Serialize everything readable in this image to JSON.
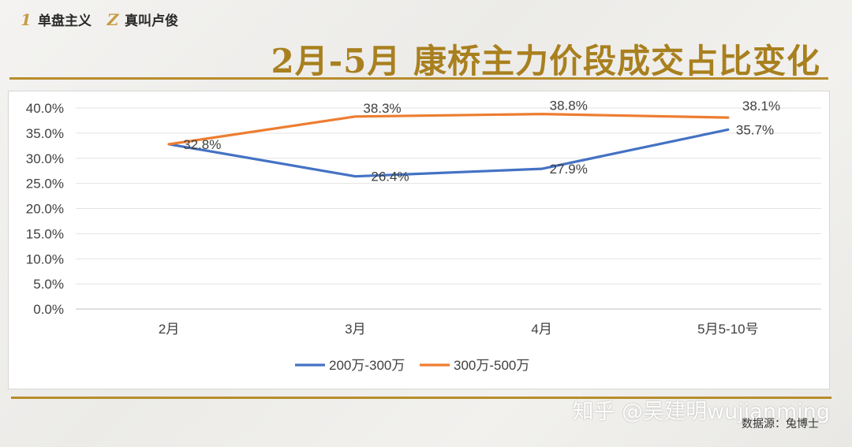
{
  "brand": {
    "item1": {
      "icon": "1",
      "label": "单盘主义"
    },
    "item2": {
      "icon": "Z",
      "label": "真叫卢俊"
    }
  },
  "title": "2月-5月 康桥主力价段成交占比变化",
  "watermark": "知乎 @吴建明wujianming",
  "source": "数据源：兔博士",
  "colors": {
    "gold": "#a9801f",
    "series1": "#4472c4",
    "series2": "#ed7d31"
  },
  "chart_data": {
    "type": "line",
    "categories": [
      "2月",
      "3月",
      "4月",
      "5月5-10号"
    ],
    "series": [
      {
        "name": "200万-300万",
        "values": [
          32.8,
          26.4,
          27.9,
          35.7
        ],
        "labels": [
          "",
          "26.4%",
          "27.9%",
          "35.7%"
        ],
        "color": "#4472c4"
      },
      {
        "name": "300万-500万",
        "values": [
          32.8,
          38.3,
          38.8,
          38.1
        ],
        "labels": [
          "32.8%",
          "38.3%",
          "38.8%",
          "38.1%"
        ],
        "color": "#ed7d31"
      }
    ],
    "yticks": [
      "0.0%",
      "5.0%",
      "10.0%",
      "15.0%",
      "20.0%",
      "25.0%",
      "30.0%",
      "35.0%",
      "40.0%"
    ],
    "ylim": [
      0,
      40
    ],
    "grid": true,
    "legend": "bottom"
  }
}
